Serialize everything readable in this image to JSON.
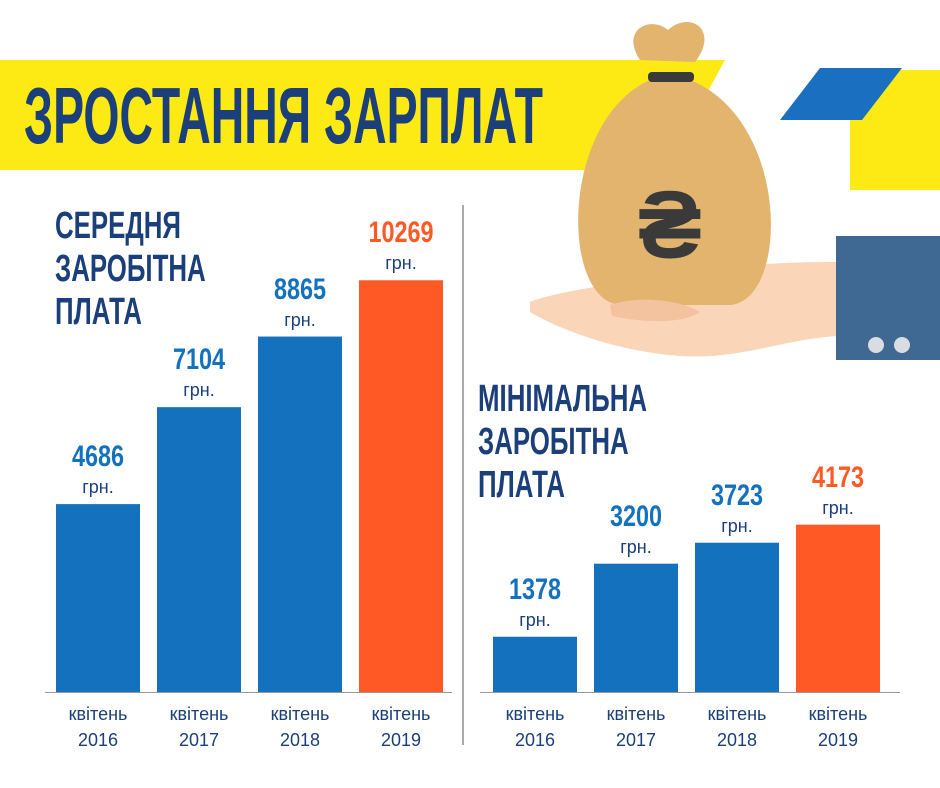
{
  "title": "ЗРОСТАННЯ ЗАРПЛАТ",
  "chart_data": [
    {
      "type": "bar",
      "title": "СЕРЕДНЯ ЗАРОБІТНА ПЛАТА",
      "categories": [
        "квітень 2016",
        "квітень 2017",
        "квітень 2018",
        "квітень 2019"
      ],
      "values": [
        4686,
        7104,
        8865,
        10269
      ],
      "unit": "грн.",
      "colors": [
        "#1471bd",
        "#1471bd",
        "#1471bd",
        "#ff5a26"
      ],
      "ylim": [
        0,
        10500
      ],
      "grid": false
    },
    {
      "type": "bar",
      "title": "МІНІМАЛЬНА ЗАРОБІТНА ПЛАТА",
      "categories": [
        "квітень 2016",
        "квітень 2017",
        "квітень 2018",
        "квітень 2019"
      ],
      "values": [
        1378,
        3200,
        3723,
        4173
      ],
      "unit": "грн.",
      "colors": [
        "#1471bd",
        "#1471bd",
        "#1471bd",
        "#ff5a26"
      ],
      "ylim": [
        0,
        10500
      ],
      "grid": false
    }
  ]
}
